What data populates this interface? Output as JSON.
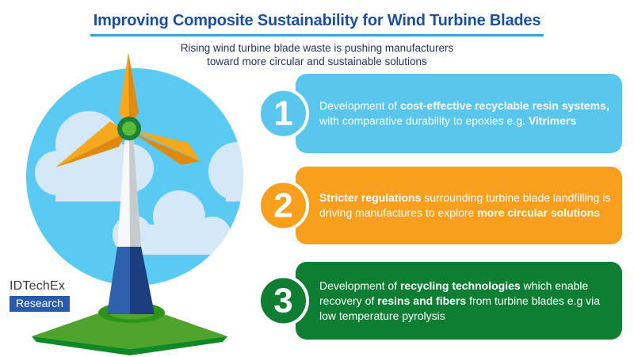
{
  "header": {
    "title": "Improving Composite Sustainability for Wind Turbine Blades",
    "subtitle_line1": "Rising wind turbine blade waste is pushing manufacturers",
    "subtitle_line2": "toward more circular and sustainable solutions"
  },
  "cards": [
    {
      "number": "1",
      "color": "#58C6ED",
      "segments": [
        {
          "t": "Development of ",
          "b": false
        },
        {
          "t": "cost-effective recyclable resin systems,",
          "b": true
        },
        {
          "t": " with comparative durability to epoxies e.g. ",
          "b": false
        },
        {
          "t": "Vitrimers",
          "b": true
        }
      ]
    },
    {
      "number": "2",
      "color": "#F8A01E",
      "segments": [
        {
          "t": "Stricter regulations",
          "b": true
        },
        {
          "t": " surrounding turbine blade landfilling is driving manufactures to explore ",
          "b": false
        },
        {
          "t": "more circular solutions",
          "b": true
        }
      ]
    },
    {
      "number": "3",
      "color": "#0E7E33",
      "segments": [
        {
          "t": "Development of ",
          "b": false
        },
        {
          "t": "recycling technologies",
          "b": true
        },
        {
          "t": " which enable recovery of ",
          "b": false
        },
        {
          "t": "resins and fibers",
          "b": true
        },
        {
          "t": " from turbine blades e.g via low temperature pyrolysis",
          "b": false
        }
      ]
    }
  ],
  "logo": {
    "brand": "IDTechEx",
    "sub": "Research"
  },
  "colors": {
    "title_blue": "#1D4F9F",
    "underline_blue": "#2BA9E1",
    "subtitle_navy": "#283067",
    "sky_blue": "#5ACAF2",
    "cloud": "#D5E8F8",
    "blade_light": "#F6A91E",
    "blade_dark": "#DE8A10",
    "hub_ring_green": "#1B8038",
    "hub_center_green": "#58BC3C",
    "tower_white": "#F7F8F8",
    "tower_shade": "#C6CBCD",
    "base_blue": "#2F60AB",
    "base_shade": "#1C3E7E",
    "grass_green": "#4FA42E",
    "grass_edge_green": "#0F8825",
    "grass_ring_green": "#2D9519",
    "logo_text": "#3B3B3A",
    "logo_box_blue": "#2A5BA9"
  }
}
